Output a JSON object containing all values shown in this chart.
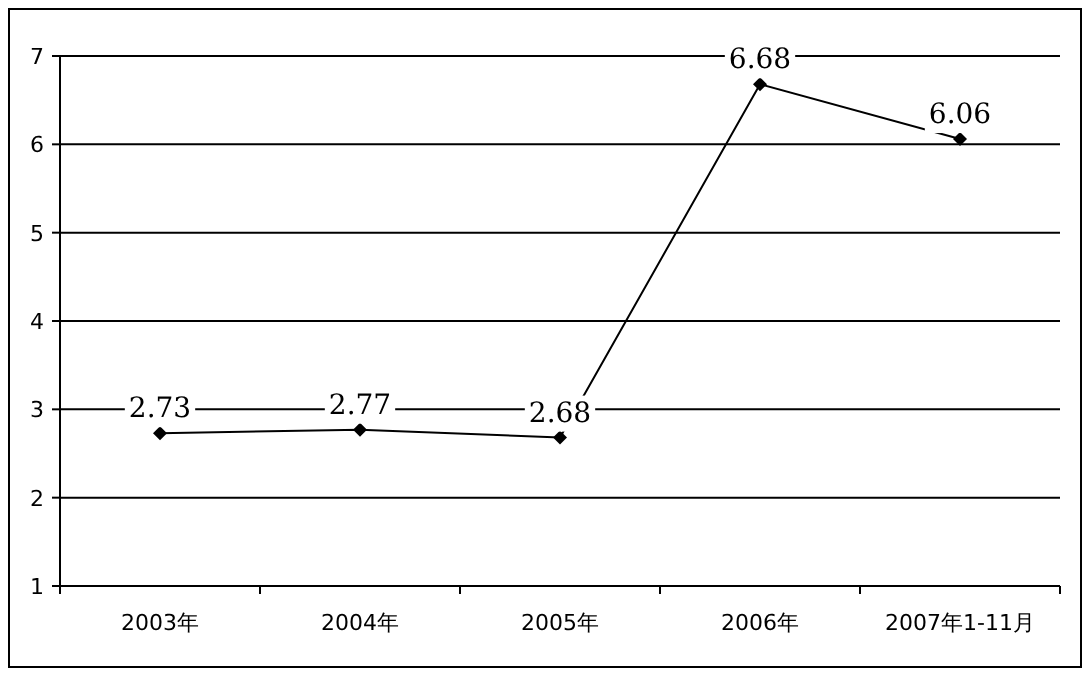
{
  "chart_data": {
    "type": "line",
    "categories": [
      "2003年",
      "2004年",
      "2005年",
      "2006年",
      "2007年1-11月"
    ],
    "series": [
      {
        "color": "#000000",
        "values": [
          2.73,
          2.77,
          2.68,
          6.68,
          6.06
        ]
      }
    ],
    "ylim": [
      1,
      7
    ],
    "yticks": [
      1,
      2,
      3,
      4,
      5,
      6,
      7
    ],
    "grid": "y",
    "marker": "diamond",
    "line_style": "solid",
    "data_labels": true
  }
}
